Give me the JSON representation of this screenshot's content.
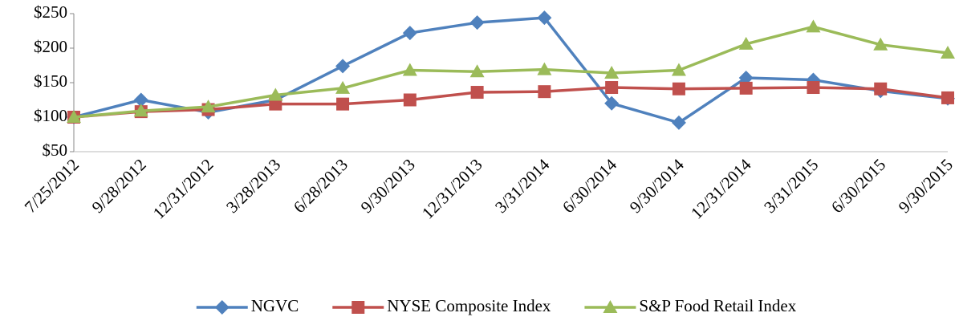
{
  "chart_data": {
    "type": "line",
    "categories": [
      "7/25/2012",
      "9/28/2012",
      "12/31/2012",
      "3/28/2013",
      "6/28/2013",
      "9/30/2013",
      "12/31/2013",
      "3/31/2014",
      "6/30/2014",
      "9/30/2014",
      "12/31/2014",
      "3/31/2015",
      "6/30/2015",
      "9/30/2015"
    ],
    "series": [
      {
        "name": "NGVC",
        "color": "#4f81bd",
        "marker": "diamond",
        "values": [
          100,
          125,
          107,
          125,
          174,
          222,
          237,
          244,
          120,
          92,
          157,
          154,
          138,
          127
        ]
      },
      {
        "name": "NYSE Composite Index",
        "color": "#c0504d",
        "marker": "square",
        "values": [
          100,
          108,
          111,
          119,
          119,
          125,
          136,
          137,
          143,
          141,
          142,
          143,
          141,
          128
        ]
      },
      {
        "name": "S&P Food Retail Index",
        "color": "#9bbb59",
        "marker": "triangle",
        "values": [
          100,
          109,
          115,
          132,
          142,
          168,
          166,
          169,
          164,
          168,
          206,
          231,
          205,
          193
        ]
      }
    ],
    "ylim": [
      50,
      250
    ],
    "yticks": [
      {
        "value": 50,
        "label": "$50"
      },
      {
        "value": 100,
        "label": "$100"
      },
      {
        "value": 150,
        "label": "$150"
      },
      {
        "value": 200,
        "label": "$200"
      },
      {
        "value": 250,
        "label": "$250"
      }
    ],
    "grid": false,
    "legend": "bottom"
  }
}
